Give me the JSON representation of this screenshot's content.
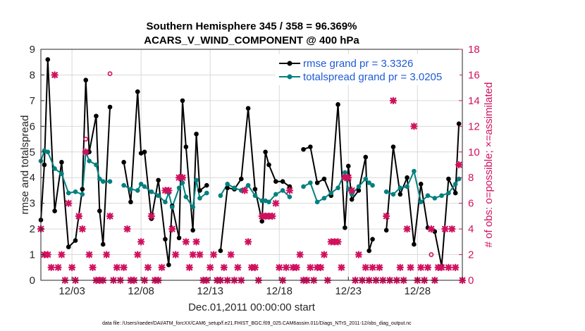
{
  "chart_data": {
    "type": "line",
    "title": [
      "Southern Hemisphere 345 / 358 = 96.369%",
      "ACARS_V_WIND_COMPONENT @ 400 hPa"
    ],
    "xlabel": "Dec.01,2011 00:00:00 start",
    "ylabel": "rmse and totalspread",
    "y2label": "# of obs: o=possible; ×=assimilated",
    "xlim": [
      0.75,
      31.25
    ],
    "ylim": [
      0,
      9
    ],
    "y2lim": [
      0,
      18
    ],
    "xticks": [
      3,
      8,
      13,
      18,
      23,
      28
    ],
    "xtick_labels": [
      "12/03",
      "12/08",
      "12/13",
      "12/18",
      "12/23",
      "12/28"
    ],
    "yticks": [
      "0",
      "1",
      "2",
      "3",
      "4",
      "5",
      "6",
      "7",
      "8",
      "9"
    ],
    "y2ticks": [
      "0",
      "2",
      "4",
      "6",
      "8",
      "10",
      "12",
      "14",
      "16",
      "18"
    ],
    "legend": {
      "location": "top-right",
      "entries": [
        "rmse grand pr = 3.3326",
        "totalspread grand pr = 3.0205"
      ]
    },
    "colors": {
      "rmse": "#000000",
      "spread": "#00807f",
      "obs": "#d0115e",
      "legend_text": "#1f5bd6"
    },
    "series": [
      {
        "name": "rmse",
        "points": [
          [
            0.75,
            2.35
          ],
          [
            1.0,
            4.5
          ],
          [
            1.25,
            8.6
          ],
          [
            1.75,
            2.7
          ],
          [
            2.25,
            4.6
          ],
          [
            2.75,
            1.3
          ],
          [
            3.25,
            1.55
          ],
          [
            3.75,
            3.55
          ],
          [
            4.0,
            7.8
          ],
          [
            4.25,
            5.0
          ],
          [
            4.75,
            6.4
          ],
          [
            5.0,
            2.7
          ],
          [
            5.25,
            1.4
          ],
          [
            5.75,
            6.75
          ],
          [
            6.75,
            4.6
          ],
          [
            7.25,
            3.05
          ],
          [
            7.75,
            7.35
          ],
          [
            8.0,
            4.95
          ],
          [
            8.25,
            5.0
          ],
          [
            8.75,
            2.4
          ],
          [
            9.25,
            3.9
          ],
          [
            9.75,
            1.6
          ],
          [
            10.0,
            0.6
          ],
          [
            10.25,
            2.9
          ],
          [
            10.75,
            1.65
          ],
          [
            11.0,
            7.0
          ],
          [
            11.25,
            5.2
          ],
          [
            11.75,
            1.95
          ],
          [
            12.0,
            5.7
          ],
          [
            12.25,
            3.5
          ],
          [
            12.75,
            3.7
          ],
          [
            13.75,
            1.15
          ],
          [
            14.25,
            3.6
          ],
          [
            14.75,
            3.55
          ],
          [
            15.25,
            3.95
          ],
          [
            15.75,
            6.7
          ],
          [
            16.25,
            3.55
          ],
          [
            16.75,
            2.3
          ],
          [
            17.0,
            5.0
          ],
          [
            17.25,
            4.5
          ],
          [
            17.75,
            3.85
          ],
          [
            18.25,
            3.85
          ],
          [
            18.75,
            3.65
          ],
          [
            19.75,
            5.1
          ],
          [
            20.25,
            5.2
          ],
          [
            20.75,
            3.8
          ],
          [
            21.25,
            3.95
          ],
          [
            21.75,
            3.3
          ],
          [
            22.25,
            6.85
          ],
          [
            22.75,
            2.05
          ],
          [
            23.0,
            4.45
          ],
          [
            23.25,
            3.15
          ],
          [
            23.75,
            3.5
          ],
          [
            24.25,
            4.8
          ],
          [
            24.5,
            1.15
          ],
          [
            24.75,
            1.6
          ],
          [
            25.75,
            1.95
          ],
          [
            26.25,
            5.2
          ],
          [
            26.75,
            3.35
          ],
          [
            27.25,
            4.0
          ],
          [
            27.75,
            1.4
          ],
          [
            28.25,
            3.75
          ],
          [
            28.75,
            2.05
          ],
          [
            29.25,
            1.9
          ],
          [
            29.75,
            0.55
          ],
          [
            30.25,
            3.95
          ],
          [
            30.75,
            3.4
          ],
          [
            31.0,
            6.1
          ]
        ],
        "connect_gap": 0.6
      },
      {
        "name": "totalspread",
        "points": [
          [
            0.75,
            4.65
          ],
          [
            1.0,
            5.05
          ],
          [
            1.25,
            5.0
          ],
          [
            1.75,
            4.35
          ],
          [
            2.25,
            4.15
          ],
          [
            2.75,
            3.4
          ],
          [
            3.25,
            3.45
          ],
          [
            3.75,
            3.35
          ],
          [
            4.0,
            5.0
          ],
          [
            4.25,
            4.65
          ],
          [
            4.75,
            4.5
          ],
          [
            5.0,
            3.95
          ],
          [
            5.25,
            3.85
          ],
          [
            5.75,
            3.85
          ],
          [
            6.75,
            3.7
          ],
          [
            7.25,
            3.55
          ],
          [
            7.75,
            3.5
          ],
          [
            8.0,
            3.75
          ],
          [
            8.25,
            3.65
          ],
          [
            8.75,
            3.45
          ],
          [
            9.25,
            3.3
          ],
          [
            9.75,
            3.05
          ],
          [
            10.0,
            3.4
          ],
          [
            10.25,
            2.85
          ],
          [
            10.75,
            3.6
          ],
          [
            11.0,
            3.8
          ],
          [
            11.25,
            3.25
          ],
          [
            11.75,
            2.85
          ],
          [
            12.0,
            3.9
          ],
          [
            12.25,
            3.2
          ],
          [
            12.75,
            3.4
          ],
          [
            13.75,
            3.3
          ],
          [
            14.25,
            3.75
          ],
          [
            14.75,
            3.6
          ],
          [
            15.25,
            3.5
          ],
          [
            15.75,
            3.7
          ],
          [
            16.25,
            3.3
          ],
          [
            16.75,
            3.1
          ],
          [
            17.0,
            3.1
          ],
          [
            17.25,
            3.05
          ],
          [
            17.75,
            3.35
          ],
          [
            18.25,
            3.5
          ],
          [
            18.75,
            3.25
          ],
          [
            19.75,
            3.65
          ],
          [
            20.25,
            3.8
          ],
          [
            20.75,
            3.05
          ],
          [
            21.25,
            3.2
          ],
          [
            21.75,
            3.4
          ],
          [
            22.25,
            3.6
          ],
          [
            22.75,
            4.2
          ],
          [
            23.0,
            3.55
          ],
          [
            23.25,
            3.35
          ],
          [
            23.75,
            3.65
          ],
          [
            24.25,
            3.95
          ],
          [
            24.5,
            3.8
          ],
          [
            24.75,
            3.7
          ],
          [
            25.75,
            3.45
          ],
          [
            26.25,
            3.35
          ],
          [
            26.75,
            3.6
          ],
          [
            27.25,
            3.65
          ],
          [
            27.75,
            4.25
          ],
          [
            28.25,
            3.05
          ],
          [
            28.75,
            3.3
          ],
          [
            29.25,
            3.2
          ],
          [
            29.75,
            3.3
          ],
          [
            30.25,
            3.4
          ],
          [
            30.75,
            3.75
          ],
          [
            31.0,
            3.95
          ]
        ],
        "connect_gap": 0.6
      },
      {
        "name": "obs_possible",
        "marker": "o",
        "points": [
          [
            4.0,
            11
          ],
          [
            5.75,
            16.1
          ],
          [
            29.0,
            2
          ]
        ]
      },
      {
        "name": "obs_assimilated",
        "marker": "x",
        "points": [
          [
            0.75,
            4
          ],
          [
            1.0,
            2
          ],
          [
            1.25,
            2
          ],
          [
            1.5,
            1
          ],
          [
            1.75,
            16
          ],
          [
            2.0,
            1
          ],
          [
            2.25,
            2
          ],
          [
            2.5,
            0
          ],
          [
            2.75,
            6
          ],
          [
            3.0,
            1
          ],
          [
            3.25,
            0
          ],
          [
            3.5,
            5
          ],
          [
            3.75,
            4
          ],
          [
            4.0,
            10
          ],
          [
            4.25,
            2
          ],
          [
            4.5,
            1
          ],
          [
            4.75,
            0
          ],
          [
            5.0,
            0
          ],
          [
            5.25,
            0
          ],
          [
            5.5,
            2
          ],
          [
            5.75,
            5
          ],
          [
            6.0,
            0
          ],
          [
            6.25,
            1
          ],
          [
            6.5,
            0
          ],
          [
            6.75,
            1
          ],
          [
            7.0,
            4
          ],
          [
            7.25,
            0
          ],
          [
            7.5,
            0
          ],
          [
            7.75,
            2
          ],
          [
            8.0,
            3
          ],
          [
            8.25,
            0
          ],
          [
            8.5,
            1
          ],
          [
            8.75,
            5
          ],
          [
            9.0,
            0
          ],
          [
            9.25,
            0
          ],
          [
            9.5,
            1
          ],
          [
            9.75,
            7
          ],
          [
            10.0,
            7
          ],
          [
            10.25,
            4
          ],
          [
            10.5,
            2
          ],
          [
            10.75,
            8
          ],
          [
            11.0,
            8
          ],
          [
            11.25,
            3
          ],
          [
            11.5,
            1
          ],
          [
            11.75,
            2
          ],
          [
            12.0,
            3
          ],
          [
            12.25,
            2
          ],
          [
            12.5,
            0
          ],
          [
            12.75,
            0
          ],
          [
            13.0,
            1
          ],
          [
            13.25,
            2
          ],
          [
            13.5,
            0
          ],
          [
            13.75,
            0
          ],
          [
            14.0,
            1
          ],
          [
            14.25,
            0
          ],
          [
            14.5,
            2
          ],
          [
            14.75,
            0
          ],
          [
            15.0,
            1
          ],
          [
            15.25,
            0
          ],
          [
            15.5,
            7
          ],
          [
            15.75,
            3
          ],
          [
            16.0,
            1
          ],
          [
            16.25,
            1
          ],
          [
            16.5,
            0
          ],
          [
            16.75,
            5
          ],
          [
            17.0,
            5
          ],
          [
            17.25,
            5
          ],
          [
            17.5,
            5
          ],
          [
            17.75,
            6
          ],
          [
            18.0,
            1
          ],
          [
            18.25,
            0
          ],
          [
            18.5,
            1
          ],
          [
            18.75,
            7
          ],
          [
            19.0,
            1
          ],
          [
            19.25,
            1
          ],
          [
            19.5,
            2
          ],
          [
            19.75,
            0
          ],
          [
            20.0,
            0
          ],
          [
            20.25,
            1
          ],
          [
            20.5,
            0
          ],
          [
            20.75,
            1
          ],
          [
            21.0,
            1
          ],
          [
            21.25,
            2
          ],
          [
            21.5,
            0
          ],
          [
            21.75,
            3
          ],
          [
            22.0,
            3
          ],
          [
            22.25,
            3
          ],
          [
            22.5,
            1
          ],
          [
            22.75,
            8
          ],
          [
            23.0,
            8
          ],
          [
            23.25,
            7
          ],
          [
            23.5,
            0
          ],
          [
            23.75,
            2
          ],
          [
            24.0,
            0
          ],
          [
            24.25,
            1
          ],
          [
            24.5,
            0
          ],
          [
            24.75,
            1
          ],
          [
            25.0,
            0
          ],
          [
            25.25,
            1
          ],
          [
            25.5,
            0
          ],
          [
            25.75,
            5
          ],
          [
            26.0,
            0
          ],
          [
            26.25,
            14
          ],
          [
            26.5,
            0
          ],
          [
            26.75,
            1
          ],
          [
            27.0,
            0
          ],
          [
            27.25,
            4
          ],
          [
            27.5,
            1
          ],
          [
            27.75,
            12
          ],
          [
            28.0,
            0
          ],
          [
            28.25,
            1
          ],
          [
            28.5,
            0
          ],
          [
            28.75,
            1
          ],
          [
            29.0,
            4
          ],
          [
            29.25,
            0
          ],
          [
            29.5,
            1
          ],
          [
            29.75,
            1
          ],
          [
            30.0,
            4
          ],
          [
            30.25,
            1
          ],
          [
            30.5,
            4
          ],
          [
            30.75,
            1
          ],
          [
            31.0,
            9
          ],
          [
            31.25,
            0
          ]
        ]
      }
    ]
  },
  "footer": "data file: /Users/raeder/DAI/ATM_forcXX/CAM6_setup/f.e21.FHIST_BGC.f09_025.CAM6assim.011/Diags_NTrS_2011-12/obs_diag_output.nc"
}
